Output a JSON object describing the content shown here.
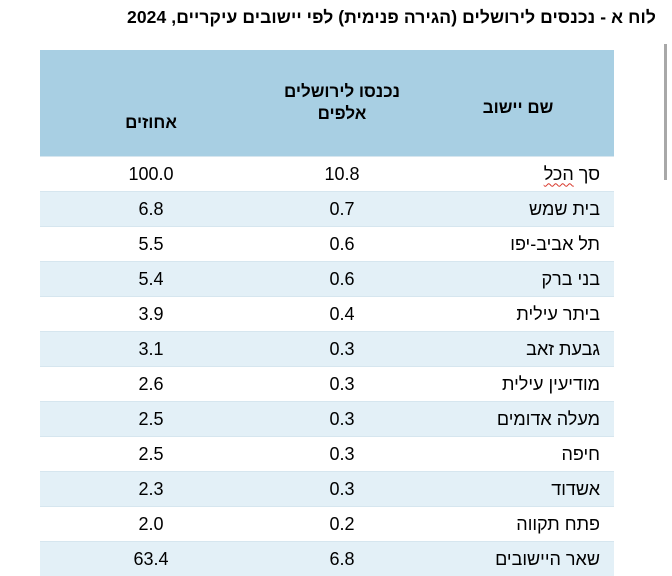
{
  "title": "לוח א - נכנסים לירושלים (הגירה פנימית) לפי יישובים עיקריים, 2024",
  "table": {
    "headers": {
      "name": "שם יישוב",
      "entrants_line1": "נכנסו לירושלים",
      "entrants_line2": "אלפים",
      "percent": "אחוזים"
    },
    "rows": [
      {
        "name_a": "סך ",
        "name_b": "הכל",
        "entrants": "10.8",
        "percent": "100.0"
      },
      {
        "name": "בית שמש",
        "entrants": "0.7",
        "percent": "6.8"
      },
      {
        "name": "תל אביב-יפו",
        "entrants": "0.6",
        "percent": "5.5"
      },
      {
        "name": "בני ברק",
        "entrants": "0.6",
        "percent": "5.4"
      },
      {
        "name": "ביתר עילית",
        "entrants": "0.4",
        "percent": "3.9"
      },
      {
        "name": "גבעת זאב",
        "entrants": "0.3",
        "percent": "3.1"
      },
      {
        "name": "מודיעין עילית",
        "entrants": "0.3",
        "percent": "2.6"
      },
      {
        "name": "מעלה אדומים",
        "entrants": "0.3",
        "percent": "2.5"
      },
      {
        "name": "חיפה",
        "entrants": "0.3",
        "percent": "2.5"
      },
      {
        "name": "אשדוד",
        "entrants": "0.3",
        "percent": "2.3"
      },
      {
        "name": "פתח תקווה",
        "entrants": "0.2",
        "percent": "2.0"
      },
      {
        "name": "שאר היישובים",
        "entrants": "6.8",
        "percent": "63.4"
      }
    ]
  },
  "colors": {
    "header_bg": "#a8cfe3",
    "alt_row_bg": "#e3f0f7",
    "spellcheck_underline": "#d8382c"
  }
}
